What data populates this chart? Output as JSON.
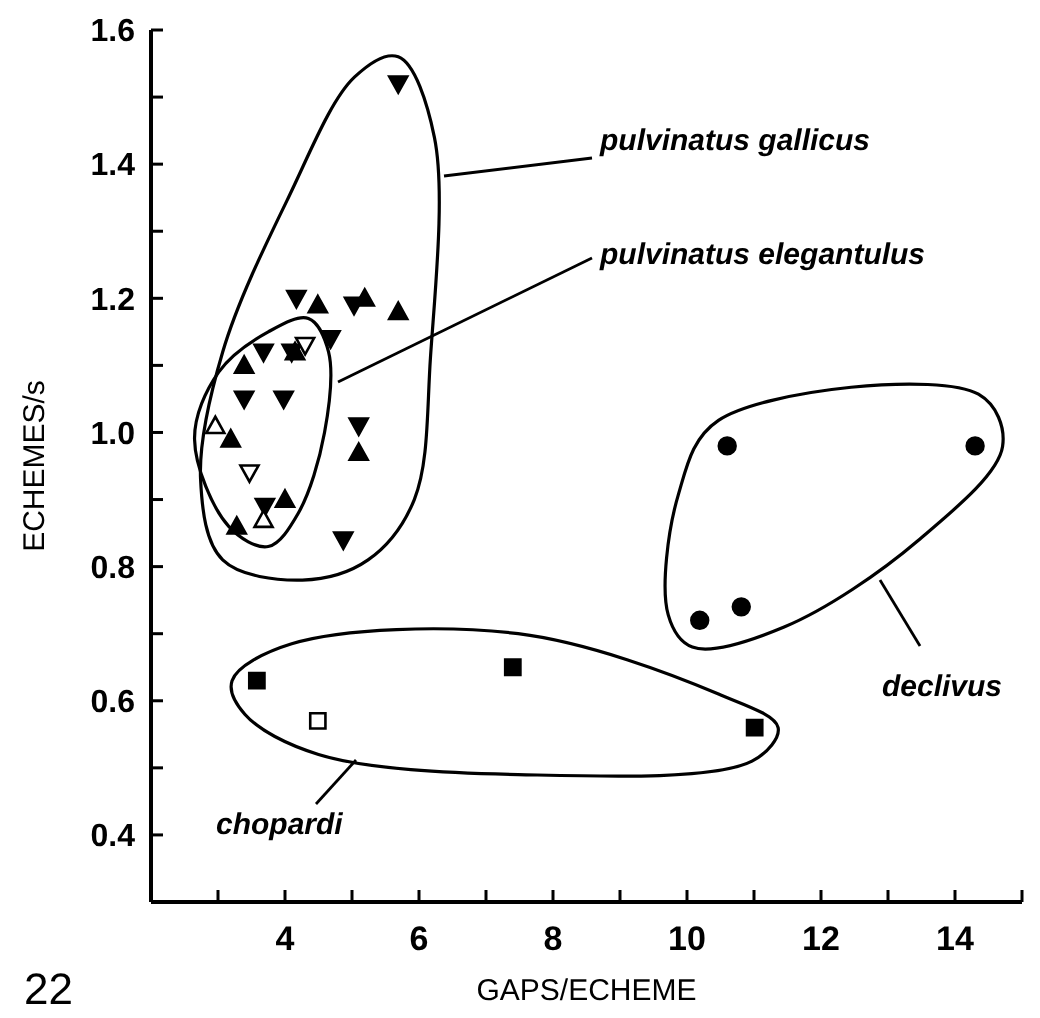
{
  "chart_data": {
    "type": "scatter",
    "xlabel": "GAPS/ECHEME",
    "ylabel": "ECHEMES/s",
    "xlim": [
      2,
      15
    ],
    "ylim": [
      0.3,
      1.6
    ],
    "xticks": [
      {
        "value": 3,
        "label": null
      },
      4,
      {
        "value": 5,
        "label": null
      },
      6,
      {
        "value": 7,
        "label": null
      },
      8,
      {
        "value": 9,
        "label": null
      },
      10,
      {
        "value": 11,
        "label": null
      },
      12,
      {
        "value": 13,
        "label": null
      },
      14,
      {
        "value": 15,
        "label": null
      }
    ],
    "yticks": [
      0.4,
      {
        "value": 0.5,
        "label": null
      },
      0.6,
      {
        "value": 0.7,
        "label": null
      },
      0.8,
      {
        "value": 0.9,
        "label": null
      },
      {
        "value": 1.0,
        "label": "1.0"
      },
      {
        "value": 1.1,
        "label": null
      },
      1.2,
      {
        "value": 1.3,
        "label": null
      },
      1.4,
      {
        "value": 1.5,
        "label": null
      },
      1.6
    ],
    "grid": false,
    "series": [
      {
        "color": "#000000",
        "marker": "triangle-down",
        "x": [
          5.69,
          4.17,
          5.03,
          3.68,
          4.1,
          4.68,
          3.39,
          3.98,
          5.1,
          3.7,
          4.87
        ],
        "values": [
          1.52,
          1.2,
          1.19,
          1.12,
          1.12,
          1.14,
          1.05,
          1.05,
          1.01,
          0.89,
          0.84
        ]
      },
      {
        "color": "#000000",
        "marker": "triangle",
        "x": [
          4.49,
          5.19,
          5.69,
          3.39,
          4.15,
          3.19,
          5.1,
          4.0,
          3.28
        ],
        "values": [
          1.19,
          1.2,
          1.18,
          1.1,
          1.12,
          0.99,
          0.97,
          0.9,
          0.86
        ]
      },
      {
        "color": "#ffffff",
        "marker": "triangle",
        "x": [
          2.96,
          3.68
        ],
        "values": [
          1.01,
          0.87
        ]
      },
      {
        "color": "#ffffff",
        "marker": "triangle-down",
        "x": [
          4.3,
          3.47
        ],
        "values": [
          1.13,
          0.94
        ]
      },
      {
        "color": "#000000",
        "marker": "square",
        "x": [
          3.58,
          7.4,
          11.01
        ],
        "values": [
          0.63,
          0.65,
          0.56
        ]
      },
      {
        "color": "#ffffff",
        "marker": "square",
        "x": [
          4.49
        ],
        "values": [
          0.57
        ]
      },
      {
        "color": "#000000",
        "marker": "circle",
        "x": [
          10.6,
          14.3,
          10.19,
          10.81
        ],
        "values": [
          0.98,
          0.98,
          0.72,
          0.74
        ]
      }
    ],
    "annotations": [
      "pulvinatus gallicus",
      "pulvinatus elegantulus",
      "declivus",
      "chopardi",
      "22"
    ]
  }
}
